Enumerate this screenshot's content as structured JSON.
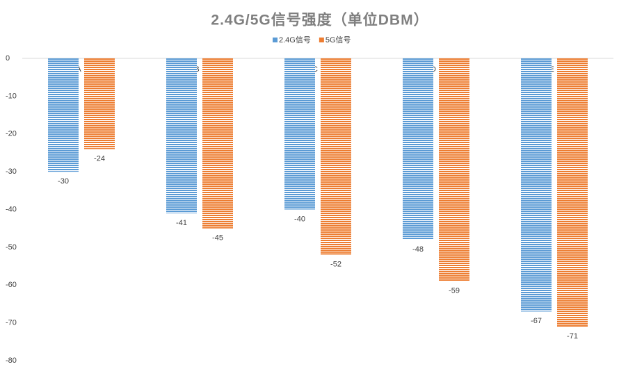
{
  "chart_data": {
    "type": "bar",
    "title": "2.4G/5G信号强度（单位DBM）",
    "categories": [
      "A",
      "B",
      "C",
      "D",
      "E"
    ],
    "series": [
      {
        "name": "2.4G信号",
        "color": "#5b9bd5",
        "values": [
          -30,
          -41,
          -40,
          -48,
          -67
        ]
      },
      {
        "name": "5G信号",
        "color": "#ed7d31",
        "values": [
          -24,
          -45,
          -52,
          -59,
          -71
        ]
      }
    ],
    "ylim": [
      -80,
      0
    ],
    "yticks": [
      0,
      -10,
      -20,
      -30,
      -40,
      -50,
      -60,
      -70,
      -80
    ],
    "grid": false,
    "legend": "top"
  }
}
